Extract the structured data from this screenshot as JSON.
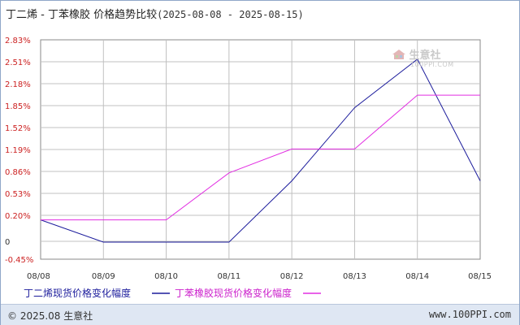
{
  "title": {
    "main": "丁二烯 - 丁苯橡胶 价格趋势比较",
    "range": "(2025-08-08 - 2025-08-15)"
  },
  "watermark": {
    "name": "生意社",
    "url": "100PPI.COM"
  },
  "footer": {
    "copyright": "© 2025.08 生意社",
    "site": "www.100PPI.com"
  },
  "colors": {
    "series1": "#1c1c9c",
    "series2": "#e22ee2",
    "grid": "#c0c0c0",
    "ytick": "#cc2222"
  },
  "chart_data": {
    "type": "line",
    "x": [
      "08/08",
      "08/09",
      "08/10",
      "08/11",
      "08/12",
      "08/13",
      "08/14",
      "08/15"
    ],
    "yticks": [
      "2.83%",
      "2.51%",
      "2.18%",
      "1.85%",
      "1.52%",
      "1.19%",
      "0.86%",
      "0.53%",
      "0.20%",
      "0",
      "-0.45%"
    ],
    "ylim": [
      -0.45,
      2.83
    ],
    "series": [
      {
        "name": "丁二烯现货价格变化幅度",
        "values": [
          0.17,
          -0.02,
          -0.02,
          -0.02,
          0.73,
          1.83,
          2.56,
          0.73
        ]
      },
      {
        "name": "丁苯橡胶现货价格变化幅度",
        "values": [
          0.17,
          0.17,
          0.17,
          0.85,
          1.21,
          1.21,
          2.02,
          2.02
        ]
      }
    ],
    "legend_position": "bottom",
    "grid": true
  }
}
